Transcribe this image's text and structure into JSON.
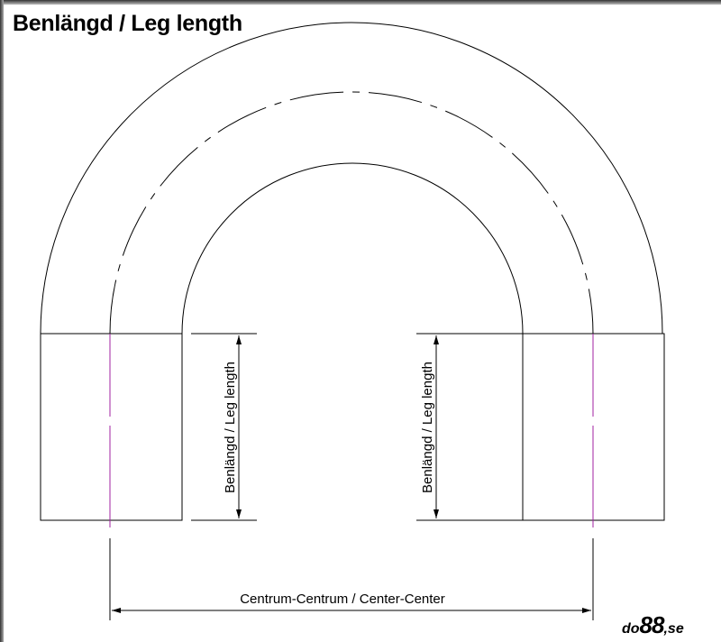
{
  "title": "Benlängd / Leg length",
  "labels": {
    "leg_length_left": "Benlängd / Leg length",
    "leg_length_right": "Benlängd / Leg length",
    "center_center": "Centrum-Centrum / Center-Center"
  },
  "logo": {
    "prefix": "do",
    "number": "88",
    "suffix": ",se"
  },
  "colors": {
    "lines": "#000000",
    "centerline": "#a020a0"
  }
}
